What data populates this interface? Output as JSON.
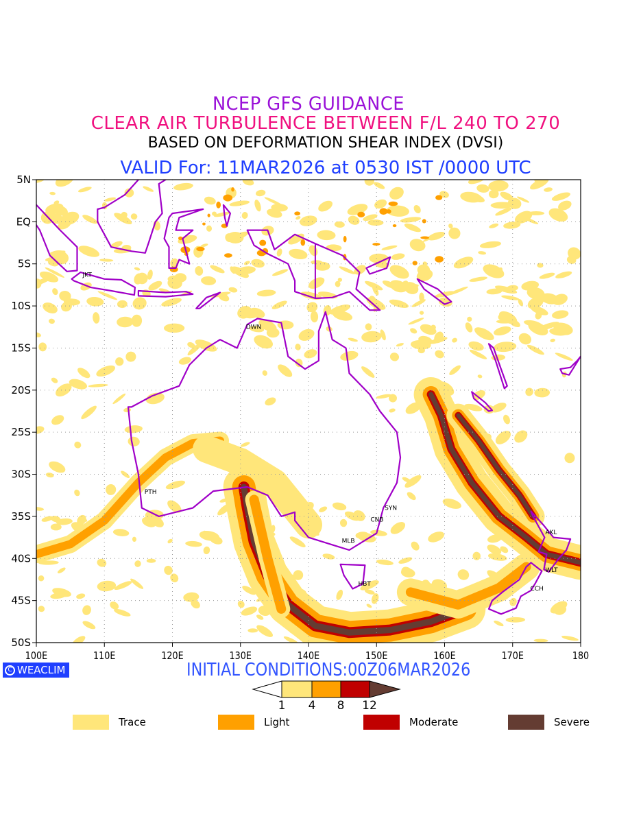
{
  "titles": {
    "line1": "NCEP GFS GUIDANCE",
    "line2": "CLEAR AIR TURBULENCE BETWEEN F/L 240 TO 270",
    "line3": "BASED ON DEFORMATION SHEAR INDEX (DVSI)",
    "line4": "VALID For: 11MAR2026 at 0530 IST /0000 UTC"
  },
  "map": {
    "lon_range": [
      100,
      180
    ],
    "lat_range": [
      -50,
      5
    ],
    "lon_ticks": [
      {
        "v": 100,
        "label": "100E"
      },
      {
        "v": 110,
        "label": "110E"
      },
      {
        "v": 120,
        "label": "120E"
      },
      {
        "v": 130,
        "label": "130E"
      },
      {
        "v": 140,
        "label": "140E"
      },
      {
        "v": 150,
        "label": "150E"
      },
      {
        "v": 160,
        "label": "160E"
      },
      {
        "v": 170,
        "label": "170E"
      },
      {
        "v": 180,
        "label": "180"
      }
    ],
    "lat_ticks": [
      {
        "v": 5,
        "label": "5N"
      },
      {
        "v": 0,
        "label": "EQ"
      },
      {
        "v": -5,
        "label": "5S"
      },
      {
        "v": -10,
        "label": "10S"
      },
      {
        "v": -15,
        "label": "15S"
      },
      {
        "v": -20,
        "label": "20S"
      },
      {
        "v": -25,
        "label": "25S"
      },
      {
        "v": -30,
        "label": "30S"
      },
      {
        "v": -35,
        "label": "35S"
      },
      {
        "v": -40,
        "label": "40S"
      },
      {
        "v": -45,
        "label": "45S"
      },
      {
        "v": -50,
        "label": "50S"
      }
    ],
    "cities": [
      {
        "code": "JKT",
        "lon": 106.8,
        "lat": -6.2
      },
      {
        "code": "DWN",
        "lon": 130.8,
        "lat": -12.4
      },
      {
        "code": "PTH",
        "lon": 115.9,
        "lat": -32.0
      },
      {
        "code": "SYN",
        "lon": 151.2,
        "lat": -33.9
      },
      {
        "code": "CNB",
        "lon": 149.1,
        "lat": -35.3
      },
      {
        "code": "MLB",
        "lon": 144.9,
        "lat": -37.8
      },
      {
        "code": "HBT",
        "lon": 147.3,
        "lat": -42.9
      },
      {
        "code": "AKL",
        "lon": 174.8,
        "lat": -36.8
      },
      {
        "code": "WLT",
        "lon": 174.8,
        "lat": -41.3
      },
      {
        "code": "CCH",
        "lon": 172.6,
        "lat": -43.5
      }
    ]
  },
  "logo": {
    "text": "WEACLIM",
    "symbol": "C"
  },
  "initial_conditions": "INITIAL CONDITIONS:00Z06MAR2026",
  "colorbar": {
    "levels": [
      "1",
      "4",
      "8",
      "12"
    ],
    "colors": [
      "#ffe67a",
      "#ffa000",
      "#c00000",
      "#643c32"
    ]
  },
  "legend": [
    {
      "label": "Trace",
      "color": "#ffe67a"
    },
    {
      "label": "Light",
      "color": "#ffa000"
    },
    {
      "label": "Moderate",
      "color": "#c00000"
    },
    {
      "label": "Severe",
      "color": "#643c32"
    }
  ],
  "colors": {
    "coast": "#a000c8",
    "title1": "#9a10d8",
    "title2": "#f0107f",
    "title4": "#1f3fff"
  }
}
